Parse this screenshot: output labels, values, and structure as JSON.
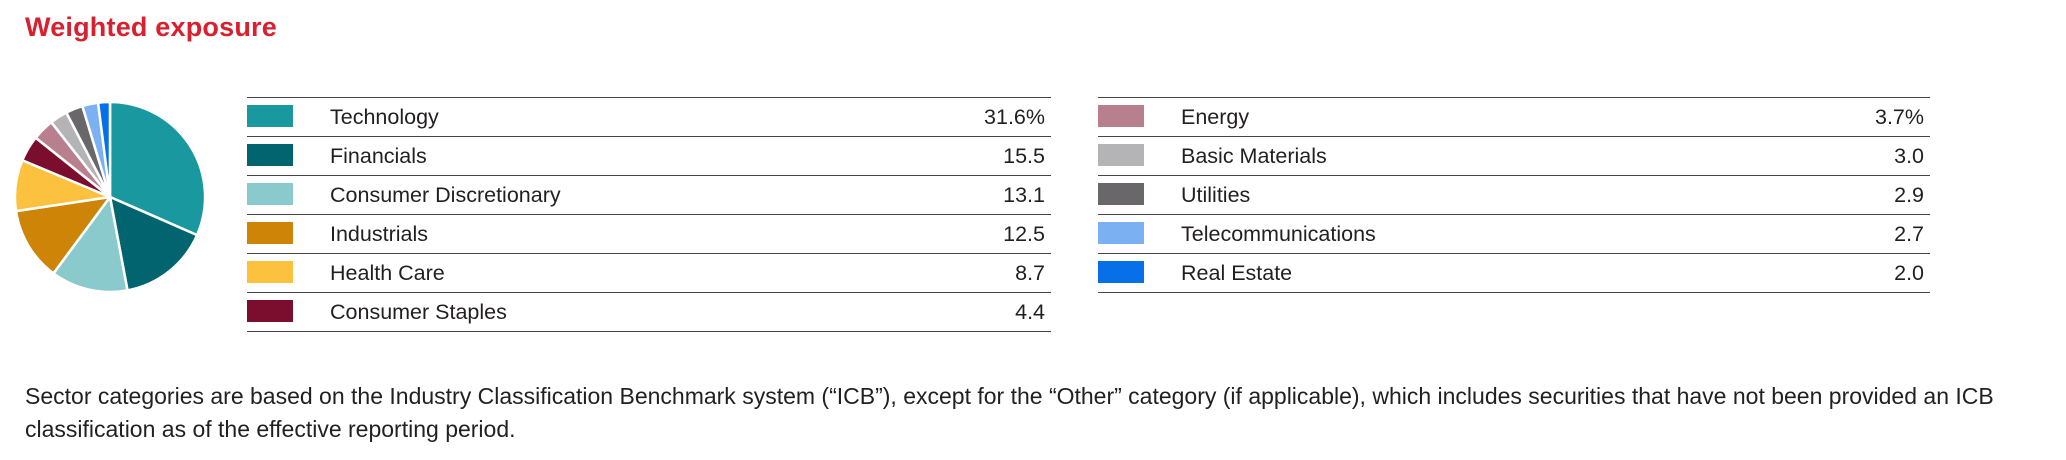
{
  "header": {
    "title": "Weighted exposure",
    "accent_color": "#d8202f"
  },
  "chart_data": {
    "type": "pie",
    "title": "Weighted exposure",
    "labels": [
      "Technology",
      "Financials",
      "Consumer Discretionary",
      "Industrials",
      "Health Care",
      "Consumer Staples",
      "Energy",
      "Basic Materials",
      "Utilities",
      "Telecommunications",
      "Real Estate"
    ],
    "values": [
      31.6,
      15.5,
      13.1,
      12.5,
      8.7,
      4.4,
      3.7,
      3.0,
      2.9,
      2.7,
      2.0
    ],
    "colors": [
      "#1a98a0",
      "#02646f",
      "#8bcacc",
      "#ce8406",
      "#fcc13f",
      "#7b0d2f",
      "#b8808f",
      "#b4b3b6",
      "#696769",
      "#7bb0f2",
      "#0670e8"
    ],
    "unit": "%",
    "start_angle_deg": -90,
    "direction": "clockwise",
    "slice_gap_color": "#ffffff",
    "legend_position": "right"
  },
  "tables": {
    "left": {
      "rows": [
        {
          "label": "Technology",
          "value": "31.6%",
          "color": "#1a98a0"
        },
        {
          "label": "Financials",
          "value": "15.5",
          "color": "#02646f"
        },
        {
          "label": "Consumer Discretionary",
          "value": "13.1",
          "color": "#8bcacc"
        },
        {
          "label": "Industrials",
          "value": "12.5",
          "color": "#ce8406"
        },
        {
          "label": "Health Care",
          "value": "8.7",
          "color": "#fcc13f"
        },
        {
          "label": "Consumer Staples",
          "value": "4.4",
          "color": "#7b0d2f"
        }
      ]
    },
    "right": {
      "rows": [
        {
          "label": "Energy",
          "value": "3.7%",
          "color": "#b8808f"
        },
        {
          "label": "Basic Materials",
          "value": "3.0",
          "color": "#b4b3b6"
        },
        {
          "label": "Utilities",
          "value": "2.9",
          "color": "#696769"
        },
        {
          "label": "Telecommunications",
          "value": "2.7",
          "color": "#7bb0f2"
        },
        {
          "label": "Real Estate",
          "value": "2.0",
          "color": "#0670e8"
        }
      ]
    }
  },
  "footnote": "Sector categories are based on the Industry Classification Benchmark system (“ICB”), except for the “Other” category (if applicable), which includes securities that have not been provided an ICB classification as of the effective reporting period."
}
